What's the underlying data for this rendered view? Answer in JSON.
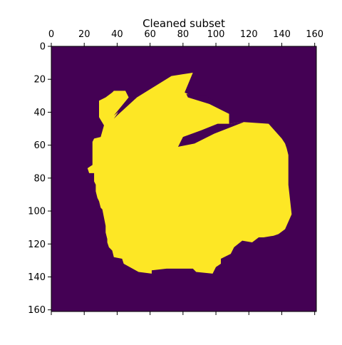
{
  "chart_data": {
    "type": "heatmap",
    "title": "Cleaned subset",
    "xlim": [
      0,
      161
    ],
    "ylim": [
      161,
      0
    ],
    "x_ticks": [
      "0",
      "20",
      "40",
      "60",
      "80",
      "100",
      "120",
      "140",
      "160"
    ],
    "y_ticks": [
      "0",
      "20",
      "40",
      "60",
      "80",
      "100",
      "120",
      "140",
      "160"
    ],
    "x_tick_position": "top",
    "colors": {
      "background": "#440154",
      "mask": "#fde725",
      "axis": "#000000"
    },
    "mask_shape": {
      "body": [
        [
          38,
          27
        ],
        [
          45,
          27
        ],
        [
          47,
          31
        ],
        [
          38,
          42
        ],
        [
          52,
          31
        ],
        [
          73,
          18
        ],
        [
          86,
          16
        ],
        [
          81,
          28
        ],
        [
          83,
          29
        ],
        [
          108,
          39
        ],
        [
          108,
          47
        ],
        [
          117,
          46
        ],
        [
          132,
          47
        ],
        [
          140,
          56
        ],
        [
          142,
          59
        ],
        [
          143,
          62
        ],
        [
          144,
          66
        ],
        [
          144,
          84
        ],
        [
          145,
          93
        ],
        [
          146,
          102
        ],
        [
          142,
          111
        ],
        [
          138,
          114
        ],
        [
          135,
          115
        ],
        [
          129,
          116
        ],
        [
          126,
          116
        ],
        [
          122,
          119
        ],
        [
          116,
          118
        ],
        [
          111,
          122
        ],
        [
          109,
          126
        ],
        [
          103,
          129
        ],
        [
          103,
          132
        ],
        [
          100,
          134
        ],
        [
          98,
          138
        ],
        [
          88,
          137
        ],
        [
          86,
          135
        ],
        [
          70,
          135
        ],
        [
          61,
          136
        ],
        [
          61,
          138
        ],
        [
          53,
          137
        ],
        [
          44,
          132
        ],
        [
          43,
          129
        ],
        [
          38,
          128
        ],
        [
          37,
          124
        ],
        [
          35,
          122
        ],
        [
          34,
          119
        ],
        [
          34,
          117
        ],
        [
          33,
          113
        ],
        [
          33,
          109
        ],
        [
          31,
          99
        ],
        [
          30,
          98
        ],
        [
          29,
          94
        ],
        [
          28,
          92
        ],
        [
          27,
          88
        ],
        [
          27,
          84
        ],
        [
          26,
          82
        ],
        [
          26,
          77
        ],
        [
          23,
          77
        ],
        [
          22,
          74
        ],
        [
          25,
          72
        ],
        [
          25,
          58
        ],
        [
          26,
          56
        ],
        [
          30,
          55
        ],
        [
          32,
          48
        ],
        [
          29,
          43
        ],
        [
          29,
          33
        ],
        [
          33,
          31
        ],
        [
          37,
          28
        ]
      ],
      "lower_slit": [
        [
          108,
          47
        ],
        [
          117,
          46
        ],
        [
          99,
          53
        ],
        [
          87,
          59
        ],
        [
          77,
          61
        ],
        [
          80,
          55
        ],
        [
          91,
          51
        ],
        [
          101,
          47
        ]
      ],
      "upper_notch_a": [
        [
          82,
          29
        ],
        [
          94,
          30
        ],
        [
          104,
          36
        ],
        [
          110,
          40
        ],
        [
          108,
          41
        ],
        [
          96,
          35
        ],
        [
          83,
          31
        ]
      ],
      "upper_notch_b": [
        [
          52,
          31
        ],
        [
          40,
          42
        ],
        [
          38,
          44
        ],
        [
          42,
          38
        ],
        [
          49,
          32
        ]
      ]
    }
  }
}
